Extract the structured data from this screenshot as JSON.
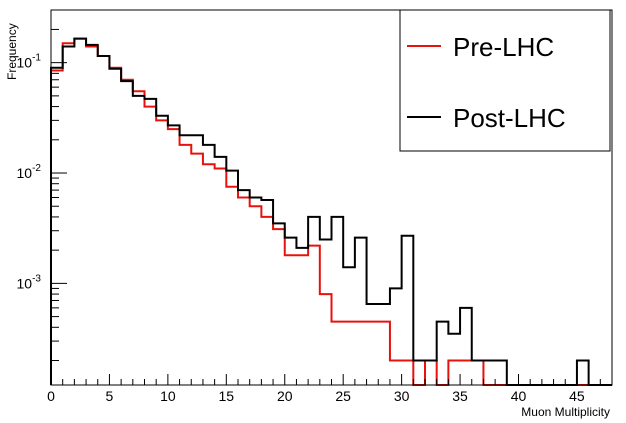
{
  "chart_data": {
    "type": "line",
    "title": "",
    "xlabel": "Muon Multiplicity",
    "ylabel": "Frequency",
    "xlim": [
      0,
      48
    ],
    "ylim": [
      0.00012,
      0.3
    ],
    "log_y": true,
    "grid": false,
    "legend_position": "top-right",
    "x_ticks": [
      0,
      5,
      10,
      15,
      20,
      25,
      30,
      35,
      40,
      45
    ],
    "x_tick_labels": [
      "0",
      "5",
      "10",
      "15",
      "20",
      "25",
      "30",
      "35",
      "40",
      "45"
    ],
    "y_ticks": [
      0.001,
      0.01,
      0.1
    ],
    "y_tick_labels": [
      {
        "base": "10",
        "exp": "-3"
      },
      {
        "base": "10",
        "exp": "-2"
      },
      {
        "base": "10",
        "exp": "-1"
      }
    ],
    "bin_edges": [
      0,
      1,
      2,
      3,
      4,
      5,
      6,
      7,
      8,
      9,
      10,
      11,
      12,
      13,
      14,
      15,
      16,
      17,
      18,
      19,
      20,
      21,
      22,
      23,
      24,
      25,
      26,
      27,
      28,
      29,
      30,
      31,
      32,
      33,
      34,
      35,
      36,
      37,
      38,
      39,
      40,
      41,
      42,
      43,
      44,
      45,
      46,
      47,
      48
    ],
    "series": [
      {
        "name": "Pre-LHC",
        "color": "#e8120c",
        "values": [
          0.085,
          0.15,
          0.165,
          0.14,
          0.115,
          0.09,
          0.07,
          0.055,
          0.04,
          0.03,
          0.025,
          0.018,
          0.015,
          0.012,
          0.011,
          0.0075,
          0.006,
          0.005,
          0.004,
          0.0031,
          0.0018,
          0.0018,
          0.0022,
          0.0008,
          0.00045,
          0.00045,
          0.00045,
          0.00045,
          0.00045,
          0.0002,
          0.0002,
          0,
          0.0002,
          0,
          0.0002,
          0.0002,
          0.0002,
          0,
          0,
          0,
          0,
          0,
          0,
          0,
          0,
          0,
          0,
          0
        ]
      },
      {
        "name": "Post-LHC",
        "color": "#000000",
        "values": [
          0.09,
          0.14,
          0.165,
          0.145,
          0.115,
          0.088,
          0.068,
          0.05,
          0.047,
          0.033,
          0.027,
          0.022,
          0.022,
          0.018,
          0.014,
          0.0105,
          0.007,
          0.006,
          0.0057,
          0.0035,
          0.0026,
          0.0021,
          0.004,
          0.0025,
          0.004,
          0.0014,
          0.0026,
          0.00065,
          0.00065,
          0.0009,
          0.0027,
          0.0002,
          0.0002,
          0.00045,
          0.00035,
          0.0006,
          0.0002,
          0.0002,
          0.0002,
          0,
          0,
          0,
          0,
          0,
          0,
          0.0002,
          0,
          0
        ]
      }
    ]
  }
}
